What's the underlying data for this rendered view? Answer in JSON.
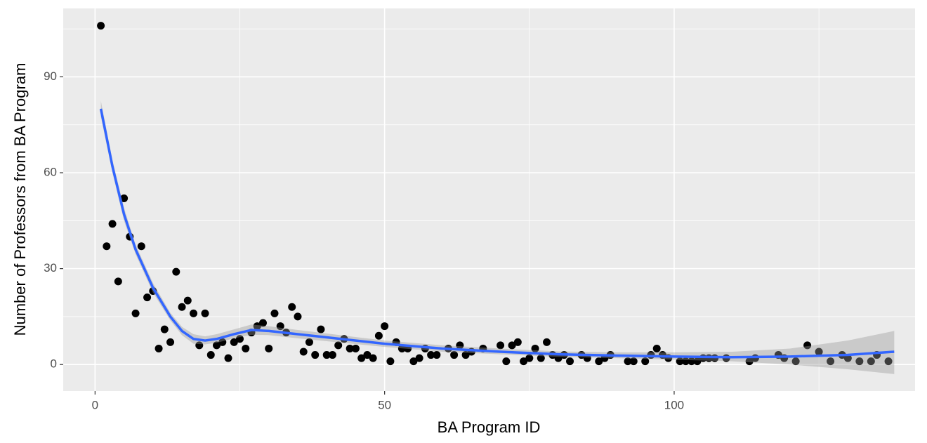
{
  "chart_data": {
    "type": "scatter",
    "x_label": "BA Program ID",
    "y_label": "Number of Professors from BA Program",
    "xlim": [
      -5.5,
      141.6
    ],
    "ylim": [
      -8.3,
      111.4
    ],
    "xticks": [
      0,
      50,
      100
    ],
    "yticks": [
      0,
      30,
      60,
      90
    ],
    "xminorticks": [
      25,
      75,
      125
    ],
    "yminorticks": [
      15,
      45,
      75,
      105
    ],
    "grid": true,
    "points": {
      "color": "#000000",
      "x": [
        1,
        2,
        3,
        4,
        5,
        6,
        7,
        8,
        9,
        10,
        11,
        12,
        13,
        14,
        15,
        16,
        17,
        18,
        19,
        20,
        21,
        22,
        23,
        24,
        25,
        26,
        27,
        28,
        29,
        30,
        31,
        32,
        33,
        34,
        35,
        36,
        37,
        38,
        39,
        40,
        41,
        42,
        43,
        44,
        45,
        46,
        47,
        48,
        49,
        50,
        51,
        52,
        53,
        54,
        55,
        56,
        57,
        58,
        59,
        61,
        62,
        63,
        64,
        65,
        67,
        70,
        71,
        72,
        73,
        74,
        75,
        76,
        77,
        78,
        79,
        80,
        81,
        82,
        84,
        85,
        87,
        88,
        89,
        92,
        93,
        95,
        96,
        97,
        98,
        99,
        101,
        102,
        103,
        104,
        105,
        106,
        107,
        109,
        113,
        114,
        118,
        119,
        121,
        123,
        125,
        127,
        129,
        130,
        132,
        134,
        135,
        137
      ],
      "y": [
        106,
        37,
        44,
        26,
        52,
        40,
        16,
        37,
        21,
        23,
        5,
        11,
        7,
        29,
        18,
        20,
        16,
        6,
        16,
        3,
        6,
        7,
        2,
        7,
        8,
        5,
        10,
        12,
        13,
        5,
        16,
        12,
        10,
        18,
        15,
        4,
        7,
        3,
        11,
        3,
        3,
        6,
        8,
        5,
        5,
        2,
        3,
        2,
        9,
        12,
        1,
        7,
        5,
        5,
        1,
        2,
        5,
        3,
        3,
        5,
        3,
        6,
        3,
        4,
        5,
        6,
        1,
        6,
        7,
        1,
        2,
        5,
        2,
        7,
        3,
        2,
        3,
        1,
        3,
        2,
        1,
        2,
        3,
        1,
        1,
        1,
        3,
        5,
        3,
        2,
        1,
        1,
        1,
        1,
        2,
        2,
        2,
        2,
        1,
        2,
        3,
        2,
        1,
        6,
        4,
        1,
        3,
        2,
        1,
        1,
        3,
        1
      ]
    },
    "smooth": {
      "color": "#3366FF",
      "band_color": "#999999",
      "x": [
        1,
        3,
        5,
        7,
        10,
        13,
        15,
        17,
        19,
        21,
        24,
        27,
        30,
        35,
        40,
        50,
        60,
        70,
        80,
        90,
        100,
        110,
        120,
        130,
        138
      ],
      "y": [
        80,
        62,
        47,
        36,
        24,
        15,
        10.5,
        8,
        7.5,
        8,
        9.5,
        10.8,
        10.5,
        9.5,
        8.5,
        6.5,
        5,
        4,
        3.2,
        2.8,
        2.5,
        2.3,
        2.5,
        3,
        4
      ],
      "lower": [
        77.5,
        60,
        45,
        34.5,
        22.5,
        13.8,
        9.2,
        6.5,
        6.3,
        6.8,
        8.2,
        9.3,
        9.2,
        8.2,
        7.3,
        5.5,
        4,
        3.2,
        2.4,
        2,
        1.5,
        1,
        0,
        -1.5,
        -3
      ],
      "upper": [
        82.5,
        64,
        49,
        37.5,
        25.5,
        16.2,
        11.8,
        9.5,
        8.8,
        9.5,
        11,
        12.5,
        12,
        10.8,
        9.7,
        7.5,
        6,
        5,
        4.1,
        3.8,
        3.8,
        4,
        5,
        7.5,
        10.5
      ]
    }
  }
}
